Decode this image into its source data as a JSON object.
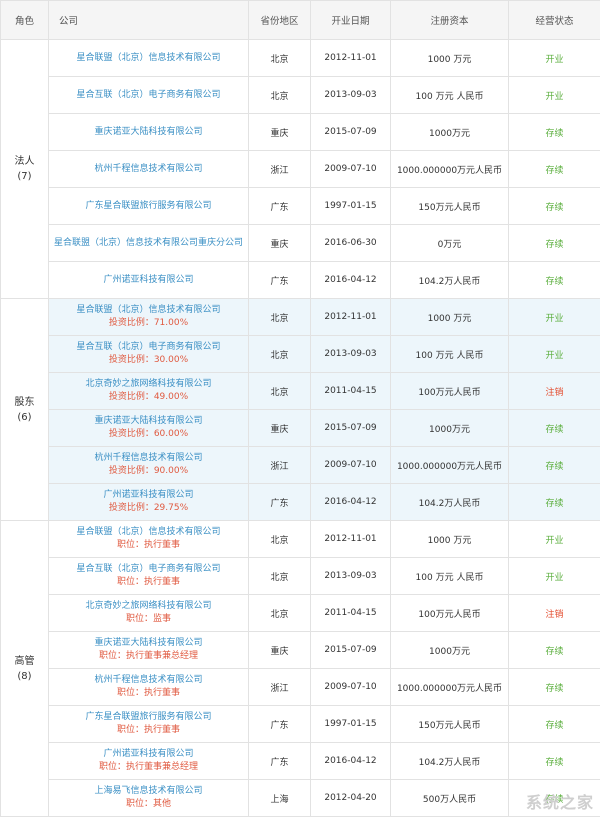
{
  "headers": [
    "角色",
    "公司",
    "省份地区",
    "开业日期",
    "注册资本",
    "经营状态"
  ],
  "groups": [
    {
      "role": "法人",
      "count": "(7)",
      "rows": [
        {
          "company": "星合联盟（北京）信息技术有限公司",
          "sub": "",
          "region": "北京",
          "date": "2012-11-01",
          "capital": "1000 万元",
          "status": "开业",
          "status_type": "open"
        },
        {
          "company": "星合互联（北京）电子商务有限公司",
          "sub": "",
          "region": "北京",
          "date": "2013-09-03",
          "capital": "100 万元 人民币",
          "status": "开业",
          "status_type": "open"
        },
        {
          "company": "重庆诺亚大陆科技有限公司",
          "sub": "",
          "region": "重庆",
          "date": "2015-07-09",
          "capital": "1000万元",
          "status": "存续",
          "status_type": "open"
        },
        {
          "company": "杭州千程信息技术有限公司",
          "sub": "",
          "region": "浙江",
          "date": "2009-07-10",
          "capital": "1000.000000万元人民币",
          "status": "存续",
          "status_type": "open"
        },
        {
          "company": "广东星合联盟旅行服务有限公司",
          "sub": "",
          "region": "广东",
          "date": "1997-01-15",
          "capital": "150万元人民币",
          "status": "存续",
          "status_type": "open"
        },
        {
          "company": "星合联盟（北京）信息技术有限公司重庆分公司",
          "sub": "",
          "region": "重庆",
          "date": "2016-06-30",
          "capital": "0万元",
          "status": "存续",
          "status_type": "open"
        },
        {
          "company": "广州诺亚科技有限公司",
          "sub": "",
          "region": "广东",
          "date": "2016-04-12",
          "capital": "104.2万人民币",
          "status": "存续",
          "status_type": "open"
        }
      ]
    },
    {
      "role": "股东",
      "count": "(6)",
      "rows": [
        {
          "company": "星合联盟（北京）信息技术有限公司",
          "sub": "投资比例：71.00%",
          "region": "北京",
          "date": "2012-11-01",
          "capital": "1000 万元",
          "status": "开业",
          "status_type": "open"
        },
        {
          "company": "星合互联（北京）电子商务有限公司",
          "sub": "投资比例：30.00%",
          "region": "北京",
          "date": "2013-09-03",
          "capital": "100 万元 人民币",
          "status": "开业",
          "status_type": "open"
        },
        {
          "company": "北京奇妙之旅网络科技有限公司",
          "sub": "投资比例：49.00%",
          "region": "北京",
          "date": "2011-04-15",
          "capital": "100万元人民币",
          "status": "注销",
          "status_type": "cancel"
        },
        {
          "company": "重庆诺亚大陆科技有限公司",
          "sub": "投资比例：60.00%",
          "region": "重庆",
          "date": "2015-07-09",
          "capital": "1000万元",
          "status": "存续",
          "status_type": "open"
        },
        {
          "company": "杭州千程信息技术有限公司",
          "sub": "投资比例：90.00%",
          "region": "浙江",
          "date": "2009-07-10",
          "capital": "1000.000000万元人民币",
          "status": "存续",
          "status_type": "open"
        },
        {
          "company": "广州诺亚科技有限公司",
          "sub": "投资比例：29.75%",
          "region": "广东",
          "date": "2016-04-12",
          "capital": "104.2万人民币",
          "status": "存续",
          "status_type": "open"
        }
      ]
    },
    {
      "role": "高管",
      "count": "(8)",
      "rows": [
        {
          "company": "星合联盟（北京）信息技术有限公司",
          "sub": "职位：执行董事",
          "region": "北京",
          "date": "2012-11-01",
          "capital": "1000 万元",
          "status": "开业",
          "status_type": "open"
        },
        {
          "company": "星合互联（北京）电子商务有限公司",
          "sub": "职位：执行董事",
          "region": "北京",
          "date": "2013-09-03",
          "capital": "100 万元 人民币",
          "status": "开业",
          "status_type": "open"
        },
        {
          "company": "北京奇妙之旅网络科技有限公司",
          "sub": "职位：监事",
          "region": "北京",
          "date": "2011-04-15",
          "capital": "100万元人民币",
          "status": "注销",
          "status_type": "cancel"
        },
        {
          "company": "重庆诺亚大陆科技有限公司",
          "sub": "职位：执行董事兼总经理",
          "region": "重庆",
          "date": "2015-07-09",
          "capital": "1000万元",
          "status": "存续",
          "status_type": "open"
        },
        {
          "company": "杭州千程信息技术有限公司",
          "sub": "职位：执行董事",
          "region": "浙江",
          "date": "2009-07-10",
          "capital": "1000.000000万元人民币",
          "status": "存续",
          "status_type": "open"
        },
        {
          "company": "广东星合联盟旅行服务有限公司",
          "sub": "职位：执行董事",
          "region": "广东",
          "date": "1997-01-15",
          "capital": "150万元人民币",
          "status": "存续",
          "status_type": "open"
        },
        {
          "company": "广州诺亚科技有限公司",
          "sub": "职位：执行董事兼总经理",
          "region": "广东",
          "date": "2016-04-12",
          "capital": "104.2万人民币",
          "status": "存续",
          "status_type": "open"
        },
        {
          "company": "上海易飞信息技术有限公司",
          "sub": "职位：其他",
          "region": "上海",
          "date": "2012-04-20",
          "capital": "500万人民币",
          "status": "存续",
          "status_type": "open"
        }
      ]
    }
  ],
  "watermark": "系统之家"
}
